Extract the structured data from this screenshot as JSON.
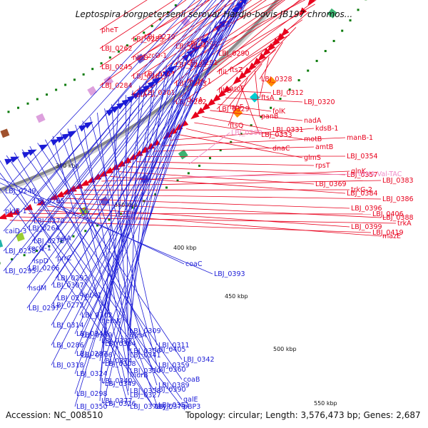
{
  "title": "Leptospira borgpetersenii serovar Hardjo-bovis JB197 chromos...",
  "footer": {
    "accession": "Accession: NC_008510",
    "summary": "Topology: circular; Length: 3,576,473 bp; Genes: 2,687"
  },
  "colors": {
    "forward_strand": "#e8001c",
    "reverse_strand": "#1b1bd6",
    "rna": "#f08cc8",
    "backbone": "#8a8a8a",
    "tick": "#0a7a0a"
  },
  "ticks": [
    "300 kbp",
    "350 kbp",
    "400 kbp",
    "450 kbp",
    "500 kbp",
    "550 kbp"
  ],
  "forward_labels": [
    "pheT",
    "LBJ_0253",
    "LBJ_0262",
    "nlpD",
    "LBJ_0245",
    "LBJ_0261",
    "LBJ_0284",
    "caiA-1",
    "LBJ_0279",
    "LBJ_0254",
    "czcD-1",
    "LBJ_0288",
    "LBJ_0267",
    "LBJ_0283",
    "LBJ_0301",
    "LBJ_0282",
    "LBJ_0299",
    "LBJ_0290",
    "LBJ_0291",
    "fliL",
    "motA-1",
    "flbD",
    "dprA",
    "LBJ_0329",
    "ftsZ",
    "LBJ_0328",
    "aroF",
    "ftsA",
    "ispF",
    "panB",
    "ftsQ",
    "LBJ_0333",
    "LBJ_0312",
    "LBJ_0320",
    "folK",
    "nadA",
    "LBJ_0331",
    "motB",
    "dnaC",
    "glmS",
    "kdsB-1",
    "manB-1",
    "amtB",
    "LBJ_0354",
    "rpsT",
    "LBJ_0357",
    "LBJ_0369",
    "LBJ_0384",
    "glnK",
    "LBJ_0383",
    "trkG-2",
    "LBJ_0386",
    "LBJ_0396",
    "LBJ_0388",
    "LBJ_0399",
    "mazE",
    "LBJ_0406",
    "trkA",
    "LBJ_0419"
  ],
  "rna_labels": [
    "LBJ_0300",
    "tRNA-Val-TAC"
  ],
  "reverse_labels": [
    "LBJ_0249",
    "LBJ_0265",
    "pldB-1",
    "LBJ_0270",
    "caiD-3",
    "LBJ_0275",
    "LBJ_0258",
    "ispD",
    "LBJ_0295",
    "LBJ_0264",
    "lysA",
    "recQ-1",
    "prrC",
    "LBJ_0266",
    "LBJ_0292",
    "hsdM",
    "LBJ_0271",
    "LBJ_0297",
    "LBJ_0307",
    "lipL41",
    "LBJ_0272",
    "LBJ_0302",
    "LBJ_0314",
    "LBJ_0339",
    "LBJ_0286",
    "LBJ_0306",
    "LBJ_0318",
    "LBJ_0344",
    "LBJ_0364",
    "LBJ_0287",
    "LBJ_0308",
    "LBJ_0324",
    "LBJ_0349",
    "LBJ_0298",
    "LBJ_0326",
    "LBJ_0350",
    "hemK",
    "LBJ_0309",
    "LBJ_0332",
    "LBJ_0356",
    "LBJ_0374",
    "LBJ_0310",
    "LBJ_0340",
    "LBJ_0358",
    "LBJ_0377",
    "gpsA",
    "LBJ_0311",
    "LBJ_0341",
    "LBJ_0359",
    "murB",
    "LBJ_0389",
    "LBJ_0327",
    "LBJ_0351",
    "LBJ_0378",
    "LBJ_0405",
    "LBJ_0342",
    "LBJ_0360",
    "coaB",
    "LBJ_0390",
    "galE",
    "acyP",
    "pBP3",
    "LBJ_0379",
    "coaC",
    "LBJ_0393"
  ]
}
